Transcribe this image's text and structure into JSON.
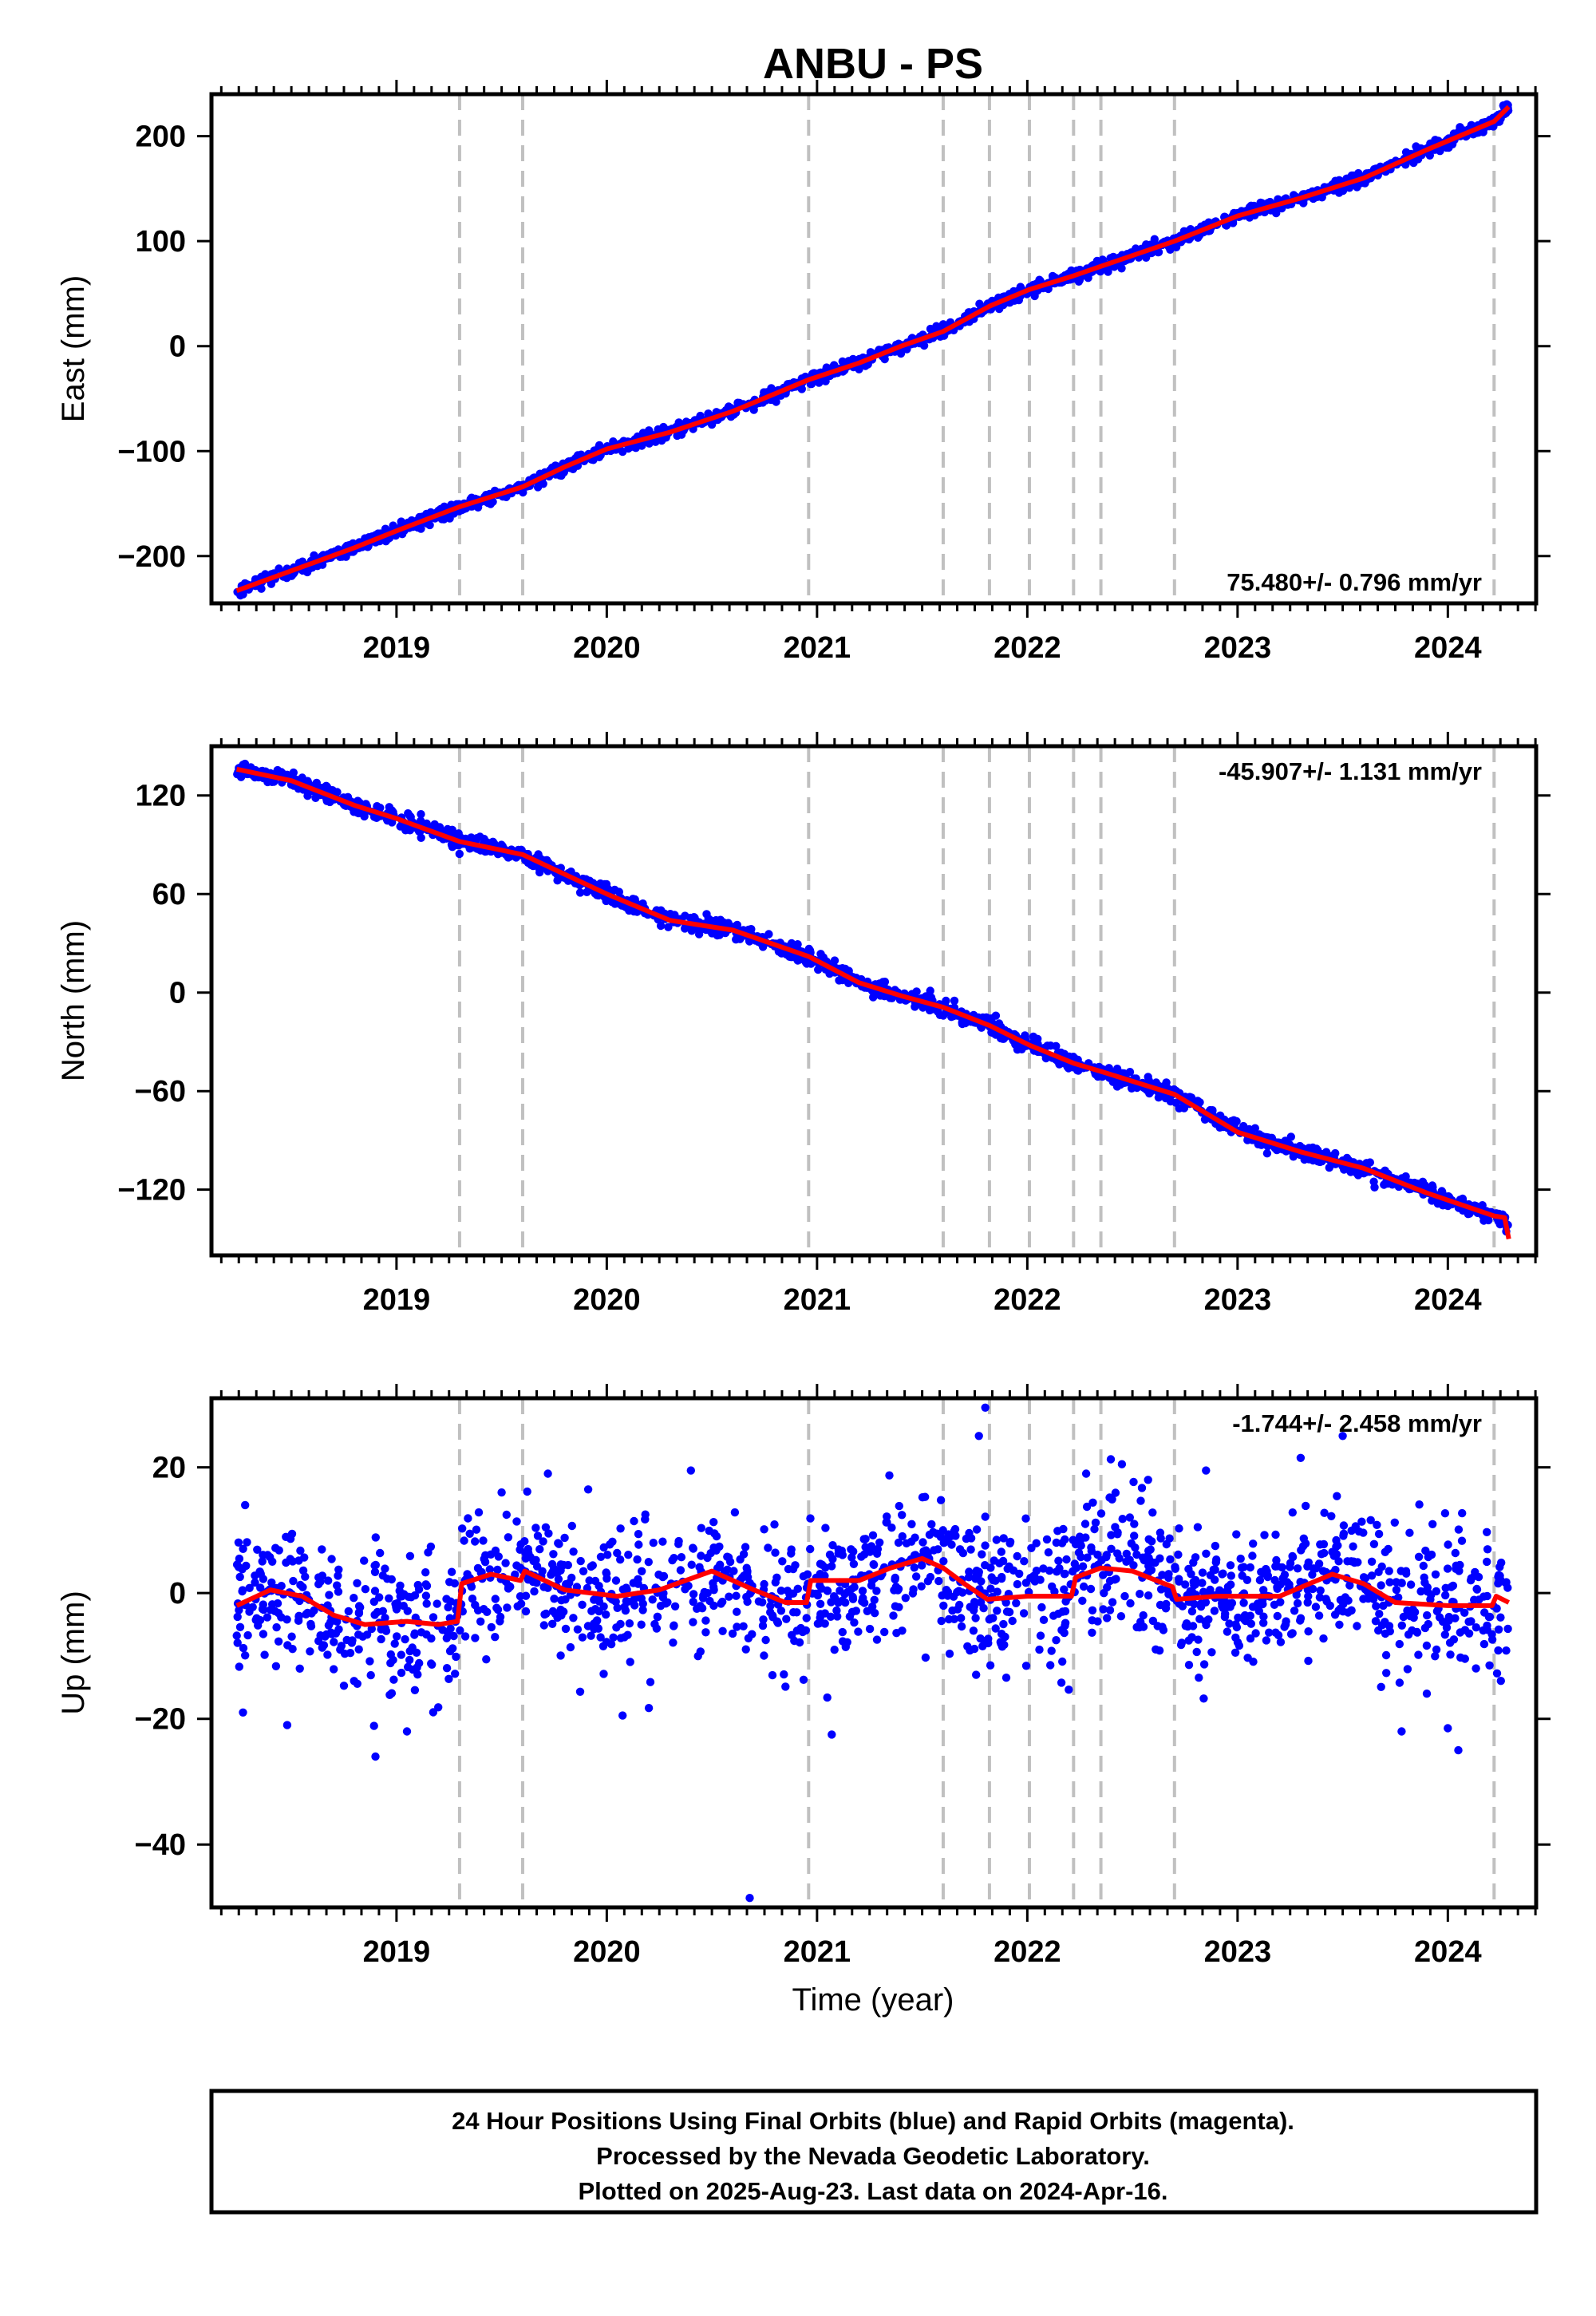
{
  "title": "ANBU - PS",
  "xlabel": "Time (year)",
  "footer": {
    "line1": "24 Hour Positions Using Final Orbits (blue) and Rapid Orbits (magenta).",
    "line2": "Processed by the Nevada Geodetic Laboratory.",
    "line3": "Plotted on 2025-Aug-23. Last data on 2024-Apr-16."
  },
  "colors": {
    "final_orbits": "#0000ff",
    "model": "#ff0000",
    "steps": "#c0c0c0"
  },
  "chart_data": [
    {
      "type": "scatter",
      "name": "east",
      "ylabel": "East (mm)",
      "rate_text": "75.480+/- 0.796 mm/yr",
      "xlim": [
        2018.12,
        2024.42
      ],
      "ylim": [
        -245,
        240
      ],
      "xticks": [
        2019,
        2020,
        2021,
        2022,
        2023,
        2024
      ],
      "yticks": [
        -200,
        -100,
        0,
        100,
        200
      ],
      "yticklabels": [
        "−200",
        "−100",
        "0",
        "100",
        "200"
      ],
      "steps": [
        2019.3,
        2019.6,
        2020.96,
        2021.6,
        2021.82,
        2022.01,
        2022.22,
        2022.35,
        2022.7,
        2024.22
      ],
      "model": [
        {
          "x": 2018.24,
          "y": -233
        },
        {
          "x": 2018.5,
          "y": -214
        },
        {
          "x": 2018.8,
          "y": -192
        },
        {
          "x": 2019.0,
          "y": -176
        },
        {
          "x": 2019.3,
          "y": -153
        },
        {
          "x": 2019.6,
          "y": -134
        },
        {
          "x": 2019.8,
          "y": -115
        },
        {
          "x": 2020.0,
          "y": -98
        },
        {
          "x": 2020.3,
          "y": -82
        },
        {
          "x": 2020.6,
          "y": -62
        },
        {
          "x": 2020.96,
          "y": -32
        },
        {
          "x": 2021.2,
          "y": -16
        },
        {
          "x": 2021.4,
          "y": 0
        },
        {
          "x": 2021.6,
          "y": 14
        },
        {
          "x": 2021.82,
          "y": 38
        },
        {
          "x": 2022.01,
          "y": 54
        },
        {
          "x": 2022.22,
          "y": 67
        },
        {
          "x": 2022.35,
          "y": 76
        },
        {
          "x": 2022.7,
          "y": 100
        },
        {
          "x": 2023.0,
          "y": 124
        },
        {
          "x": 2023.3,
          "y": 141
        },
        {
          "x": 2023.6,
          "y": 160
        },
        {
          "x": 2023.9,
          "y": 187
        },
        {
          "x": 2024.22,
          "y": 214
        },
        {
          "x": 2024.29,
          "y": 228
        }
      ],
      "scatter_sigma": 3
    },
    {
      "type": "scatter",
      "name": "north",
      "ylabel": "North (mm)",
      "rate_text": "-45.907+/- 1.131 mm/yr",
      "xlim": [
        2018.12,
        2024.42
      ],
      "ylim": [
        -160,
        150
      ],
      "xticks": [
        2019,
        2020,
        2021,
        2022,
        2023,
        2024
      ],
      "yticks": [
        -120,
        -60,
        0,
        60,
        120
      ],
      "yticklabels": [
        "−120",
        "−60",
        "0",
        "60",
        "120"
      ],
      "steps": [
        2019.3,
        2019.6,
        2020.96,
        2021.6,
        2021.82,
        2022.01,
        2022.22,
        2022.35,
        2022.7,
        2024.22
      ],
      "model": [
        {
          "x": 2018.24,
          "y": 136
        },
        {
          "x": 2018.5,
          "y": 129
        },
        {
          "x": 2018.8,
          "y": 114
        },
        {
          "x": 2019.0,
          "y": 106
        },
        {
          "x": 2019.3,
          "y": 92
        },
        {
          "x": 2019.6,
          "y": 84
        },
        {
          "x": 2019.8,
          "y": 72
        },
        {
          "x": 2020.0,
          "y": 60
        },
        {
          "x": 2020.3,
          "y": 44
        },
        {
          "x": 2020.6,
          "y": 38
        },
        {
          "x": 2020.96,
          "y": 22
        },
        {
          "x": 2021.2,
          "y": 6
        },
        {
          "x": 2021.4,
          "y": -2
        },
        {
          "x": 2021.6,
          "y": -9
        },
        {
          "x": 2021.82,
          "y": -20
        },
        {
          "x": 2022.01,
          "y": -32
        },
        {
          "x": 2022.22,
          "y": -43
        },
        {
          "x": 2022.35,
          "y": -48
        },
        {
          "x": 2022.7,
          "y": -62
        },
        {
          "x": 2023.0,
          "y": -85
        },
        {
          "x": 2023.3,
          "y": -97
        },
        {
          "x": 2023.6,
          "y": -107
        },
        {
          "x": 2023.9,
          "y": -122
        },
        {
          "x": 2024.22,
          "y": -136
        },
        {
          "x": 2024.27,
          "y": -137
        },
        {
          "x": 2024.29,
          "y": -150
        }
      ],
      "scatter_sigma": 2.5
    },
    {
      "type": "scatter",
      "name": "up",
      "ylabel": "Up (mm)",
      "rate_text": "-1.744+/- 2.458 mm/yr",
      "xlim": [
        2018.12,
        2024.42
      ],
      "ylim": [
        -50,
        31
      ],
      "xticks": [
        2019,
        2020,
        2021,
        2022,
        2023,
        2024
      ],
      "yticks": [
        -40,
        -20,
        0,
        20
      ],
      "yticklabels": [
        "−40",
        "−20",
        "0",
        "20"
      ],
      "steps": [
        2019.3,
        2019.6,
        2020.96,
        2021.6,
        2021.82,
        2022.01,
        2022.22,
        2022.35,
        2022.7,
        2024.22
      ],
      "model": [
        {
          "x": 2018.24,
          "y": -2
        },
        {
          "x": 2018.4,
          "y": 0.5
        },
        {
          "x": 2018.55,
          "y": -0.5
        },
        {
          "x": 2018.7,
          "y": -3.5
        },
        {
          "x": 2018.85,
          "y": -5
        },
        {
          "x": 2019.05,
          "y": -4.5
        },
        {
          "x": 2019.2,
          "y": -5
        },
        {
          "x": 2019.29,
          "y": -4.5
        },
        {
          "x": 2019.31,
          "y": 1.5
        },
        {
          "x": 2019.45,
          "y": 3
        },
        {
          "x": 2019.59,
          "y": 2
        },
        {
          "x": 2019.61,
          "y": 3.5
        },
        {
          "x": 2019.8,
          "y": 0.5
        },
        {
          "x": 2020.05,
          "y": -0.5
        },
        {
          "x": 2020.25,
          "y": 0.5
        },
        {
          "x": 2020.5,
          "y": 3.5
        },
        {
          "x": 2020.7,
          "y": 0.5
        },
        {
          "x": 2020.85,
          "y": -1.5
        },
        {
          "x": 2020.95,
          "y": -1.5
        },
        {
          "x": 2020.97,
          "y": 2
        },
        {
          "x": 2021.2,
          "y": 2
        },
        {
          "x": 2021.35,
          "y": 4
        },
        {
          "x": 2021.5,
          "y": 5.5
        },
        {
          "x": 2021.6,
          "y": 4
        },
        {
          "x": 2021.7,
          "y": 1.5
        },
        {
          "x": 2021.81,
          "y": -1
        },
        {
          "x": 2022.0,
          "y": -0.5
        },
        {
          "x": 2022.21,
          "y": -0.5
        },
        {
          "x": 2022.23,
          "y": 2.5
        },
        {
          "x": 2022.35,
          "y": 4
        },
        {
          "x": 2022.5,
          "y": 3.5
        },
        {
          "x": 2022.69,
          "y": 1
        },
        {
          "x": 2022.71,
          "y": -1
        },
        {
          "x": 2022.9,
          "y": -0.5
        },
        {
          "x": 2023.2,
          "y": -0.5
        },
        {
          "x": 2023.45,
          "y": 3
        },
        {
          "x": 2023.6,
          "y": 1.5
        },
        {
          "x": 2023.75,
          "y": -1.5
        },
        {
          "x": 2024.0,
          "y": -2
        },
        {
          "x": 2024.21,
          "y": -2
        },
        {
          "x": 2024.23,
          "y": -0.5
        },
        {
          "x": 2024.29,
          "y": -1.5
        }
      ],
      "scatter_sigma": 5.5,
      "outliers": [
        {
          "x": 2018.28,
          "y": 14
        },
        {
          "x": 2018.27,
          "y": -19
        },
        {
          "x": 2018.48,
          "y": -21
        },
        {
          "x": 2018.9,
          "y": -26
        },
        {
          "x": 2019.05,
          "y": -22
        },
        {
          "x": 2019.5,
          "y": 16
        },
        {
          "x": 2019.72,
          "y": 19
        },
        {
          "x": 2020.4,
          "y": 19.5
        },
        {
          "x": 2020.68,
          "y": -48.5
        },
        {
          "x": 2021.07,
          "y": -22.5
        },
        {
          "x": 2021.8,
          "y": 29.5
        },
        {
          "x": 2021.77,
          "y": 25
        },
        {
          "x": 2022.28,
          "y": 19
        },
        {
          "x": 2022.45,
          "y": 20.5
        },
        {
          "x": 2022.85,
          "y": 19.5
        },
        {
          "x": 2023.3,
          "y": 21.5
        },
        {
          "x": 2023.5,
          "y": 25
        },
        {
          "x": 2023.78,
          "y": -22
        },
        {
          "x": 2024.0,
          "y": -21.5
        },
        {
          "x": 2024.05,
          "y": -25
        },
        {
          "x": 2023.9,
          "y": -16
        }
      ]
    }
  ]
}
